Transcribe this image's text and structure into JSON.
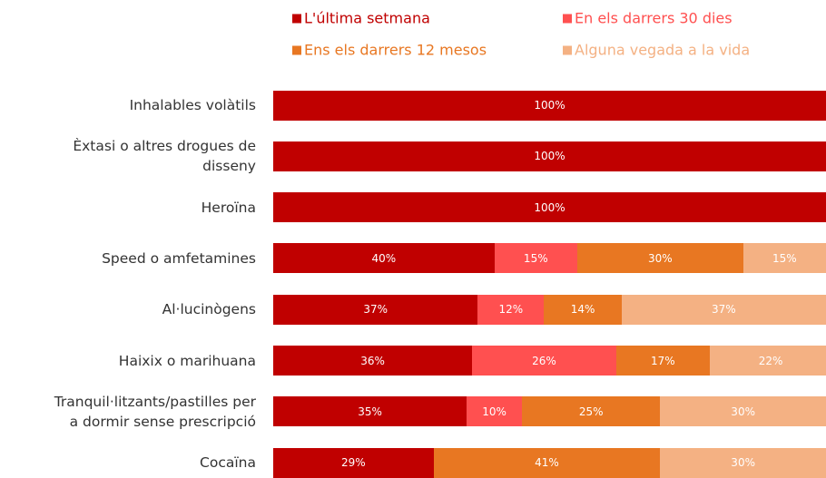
{
  "chart_data": {
    "type": "stacked-bar",
    "orientation": "horizontal",
    "categories": [
      "Inhalables volàtils",
      "Èxtasi o altres drogues de\ndisseny",
      "Heroïna",
      "Speed o amfetamines",
      "Al·lucinògens",
      "Haixix o marihuana",
      "Tranquil·litzants/pastilles per\na dormir sense prescripció",
      "Cocaïna"
    ],
    "xlim": [
      0,
      100
    ],
    "legend": "top",
    "series": [
      {
        "name": "L'última setmana",
        "color": "#c00000",
        "values": [
          100,
          100,
          100,
          40,
          37,
          36,
          35,
          29
        ],
        "value_labels": [
          "100%",
          "100%",
          "100%",
          "40%",
          "37%",
          "36%",
          "35%",
          "29%"
        ]
      },
      {
        "name": "En els darrers 30 dies",
        "color": "#ff5050",
        "values": [
          0,
          0,
          0,
          15,
          12,
          26,
          10,
          0
        ],
        "value_labels": [
          null,
          null,
          null,
          "15%",
          "12%",
          "26%",
          "10%",
          null
        ]
      },
      {
        "name": "Ens els darrers 12 mesos",
        "color": "#e87722",
        "values": [
          0,
          0,
          0,
          30,
          14,
          17,
          25,
          41
        ],
        "value_labels": [
          null,
          null,
          null,
          "30%",
          "14%",
          "17%",
          "25%",
          "41%"
        ]
      },
      {
        "name": "Alguna vegada a la vida",
        "color": "#f4b183",
        "values": [
          0,
          0,
          0,
          15,
          37,
          22,
          30,
          30
        ],
        "value_labels": [
          null,
          null,
          null,
          "15%",
          "37%",
          "22%",
          "30%",
          "30%"
        ]
      }
    ]
  }
}
